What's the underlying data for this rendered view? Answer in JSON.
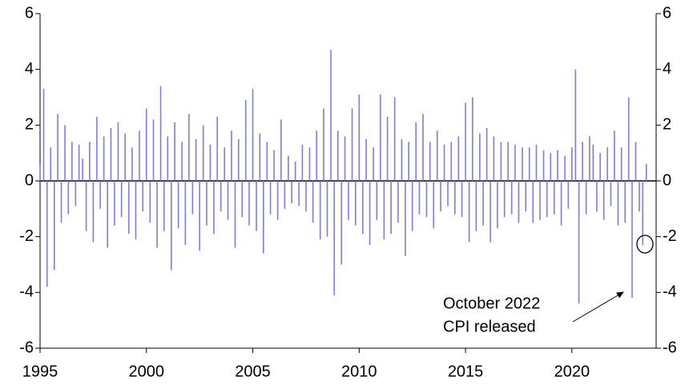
{
  "chart_data": {
    "type": "bar",
    "annotation": [
      "October 2022",
      "CPI released"
    ],
    "x": [
      1995,
      1995.17,
      1995.33,
      1995.5,
      1995.67,
      1995.83,
      1996,
      1996.17,
      1996.33,
      1996.5,
      1996.67,
      1996.83,
      1997,
      1997.17,
      1997.33,
      1997.5,
      1997.67,
      1997.83,
      1998,
      1998.17,
      1998.33,
      1998.5,
      1998.67,
      1998.83,
      1999,
      1999.17,
      1999.33,
      1999.5,
      1999.67,
      1999.83,
      2000,
      2000.17,
      2000.33,
      2000.5,
      2000.67,
      2000.83,
      2001,
      2001.17,
      2001.33,
      2001.5,
      2001.67,
      2001.83,
      2002,
      2002.17,
      2002.33,
      2002.5,
      2002.67,
      2002.83,
      2003,
      2003.17,
      2003.33,
      2003.5,
      2003.67,
      2003.83,
      2004,
      2004.17,
      2004.33,
      2004.5,
      2004.67,
      2004.83,
      2005,
      2005.17,
      2005.33,
      2005.5,
      2005.67,
      2005.83,
      2006,
      2006.17,
      2006.33,
      2006.5,
      2006.67,
      2006.83,
      2007,
      2007.17,
      2007.33,
      2007.5,
      2007.67,
      2007.83,
      2008,
      2008.17,
      2008.33,
      2008.5,
      2008.67,
      2008.83,
      2009,
      2009.17,
      2009.33,
      2009.5,
      2009.67,
      2009.83,
      2010,
      2010.17,
      2010.33,
      2010.5,
      2010.67,
      2010.83,
      2011,
      2011.17,
      2011.33,
      2011.5,
      2011.67,
      2011.83,
      2012,
      2012.17,
      2012.33,
      2012.5,
      2012.67,
      2012.83,
      2013,
      2013.17,
      2013.33,
      2013.5,
      2013.67,
      2013.83,
      2014,
      2014.17,
      2014.33,
      2014.5,
      2014.67,
      2014.83,
      2015,
      2015.17,
      2015.33,
      2015.5,
      2015.67,
      2015.83,
      2016,
      2016.17,
      2016.33,
      2016.5,
      2016.67,
      2016.83,
      2017,
      2017.17,
      2017.33,
      2017.5,
      2017.67,
      2017.83,
      2018,
      2018.17,
      2018.33,
      2018.5,
      2018.67,
      2018.83,
      2019,
      2019.17,
      2019.33,
      2019.5,
      2019.67,
      2019.83,
      2020,
      2020.17,
      2020.33,
      2020.5,
      2020.67,
      2020.83,
      2021,
      2021.17,
      2021.33,
      2021.5,
      2021.67,
      2021.83,
      2022,
      2022.17,
      2022.33,
      2022.5,
      2022.67,
      2022.83,
      2023,
      2023.17,
      2023.33,
      2023.5
    ],
    "values": [
      0.6,
      3.3,
      -3.8,
      1.2,
      -3.2,
      2.4,
      -1.5,
      2.0,
      -1.2,
      1.4,
      -0.9,
      1.3,
      0.8,
      -1.8,
      1.4,
      -2.2,
      2.3,
      -1.0,
      1.6,
      -2.4,
      1.9,
      -1.6,
      2.1,
      -1.3,
      1.7,
      -1.9,
      1.2,
      -2.1,
      1.8,
      -1.1,
      2.6,
      -1.5,
      2.2,
      -2.4,
      3.4,
      -1.8,
      1.6,
      -3.2,
      2.1,
      -1.7,
      1.4,
      -2.3,
      2.4,
      -1.2,
      1.5,
      -2.5,
      2.0,
      -1.6,
      1.3,
      -1.9,
      2.3,
      -1.1,
      1.2,
      -1.4,
      1.8,
      -2.4,
      1.5,
      -1.3,
      2.9,
      -1.6,
      3.3,
      -1.8,
      1.7,
      -2.6,
      1.4,
      -1.2,
      1.1,
      -1.4,
      2.2,
      -1.0,
      0.9,
      -0.8,
      0.7,
      -0.9,
      1.3,
      -1.1,
      1.2,
      -1.5,
      1.8,
      -2.1,
      2.6,
      -2.0,
      4.7,
      -4.1,
      1.8,
      -3.0,
      1.6,
      -1.4,
      2.6,
      -1.6,
      3.1,
      -1.9,
      1.5,
      -2.3,
      1.2,
      -1.4,
      3.1,
      -2.1,
      2.3,
      -1.9,
      3.0,
      -1.5,
      1.5,
      -2.7,
      1.4,
      -1.8,
      2.1,
      -1.2,
      2.4,
      -1.3,
      1.4,
      -1.7,
      1.8,
      -1.1,
      1.3,
      -0.9,
      1.4,
      -1.2,
      1.6,
      -1.3,
      2.8,
      -2.2,
      3.0,
      -1.8,
      1.7,
      -1.6,
      1.9,
      -2.2,
      1.6,
      -1.7,
      1.4,
      -1.3,
      1.4,
      -1.2,
      1.3,
      -1.5,
      1.2,
      -1.1,
      1.2,
      -1.5,
      1.3,
      -1.4,
      1.1,
      -1.3,
      1.0,
      -1.2,
      1.1,
      -1.6,
      0.9,
      -1.0,
      1.2,
      4.0,
      -4.4,
      1.4,
      -1.2,
      1.6,
      1.3,
      -1.1,
      1.0,
      -1.4,
      1.2,
      -0.9,
      1.8,
      -1.6,
      1.2,
      -1.5,
      3.0,
      -4.2,
      1.4,
      -1.1,
      -2.3,
      0.6
    ],
    "color": "#7b7bf0",
    "xlim": [
      1995,
      2023.96
    ],
    "xticks": [
      1995,
      2000,
      2005,
      2010,
      2015,
      2020
    ],
    "ylim": [
      -6,
      6
    ],
    "yticks": [
      -6,
      -4,
      -2,
      0,
      2,
      4,
      6
    ],
    "y2lim": [
      -6,
      6
    ],
    "y2ticks": [
      -6,
      -4,
      -2,
      0,
      2,
      4,
      6
    ]
  }
}
